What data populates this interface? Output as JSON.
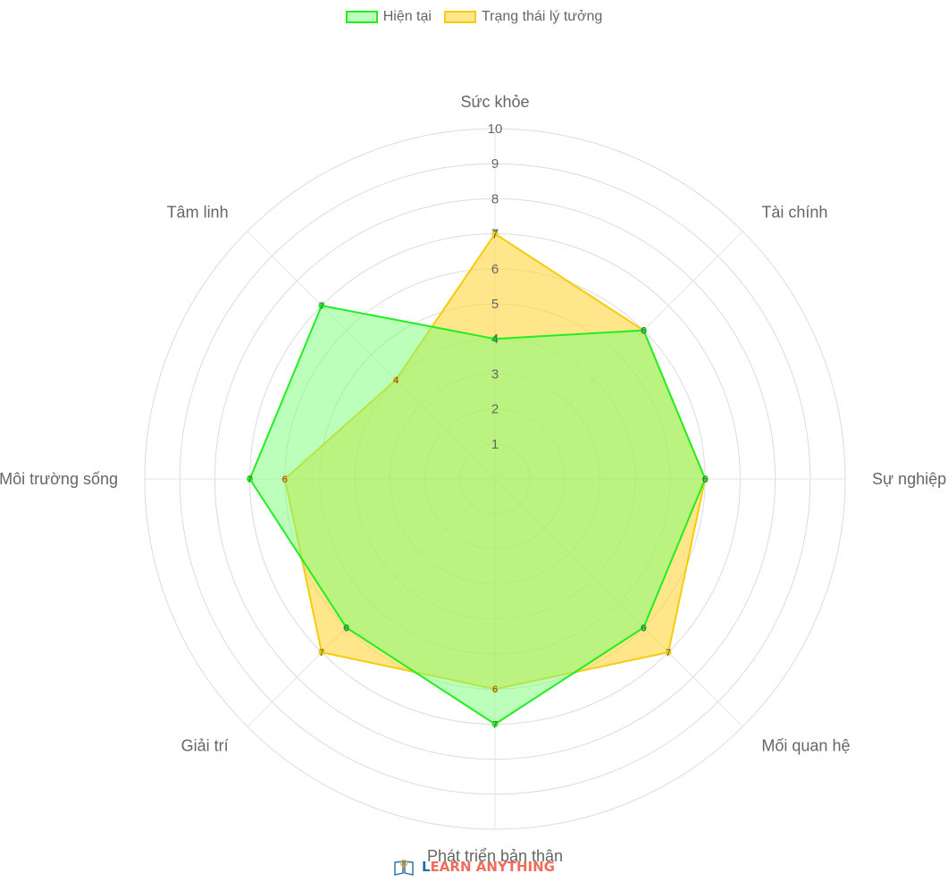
{
  "legend": {
    "series_0": "Hiện tại",
    "series_1": "Trạng thái lý tưởng"
  },
  "chart_data": {
    "type": "radar",
    "title": "",
    "categories": [
      "Sức khỏe",
      "Tài chính",
      "Sự nghiệp",
      "Mối quan hệ",
      "Phát triển bản thân",
      "Giải trí",
      "Môi trường sống",
      "Tâm linh"
    ],
    "r_ticks": [
      "1",
      "2",
      "3",
      "4",
      "5",
      "6",
      "7",
      "8",
      "9",
      "10"
    ],
    "r_range": [
      0,
      10
    ],
    "grid": true,
    "legend_position": "top",
    "series": [
      {
        "name": "Hiện tại",
        "values": [
          4,
          6,
          6,
          6,
          7,
          6,
          7,
          7
        ],
        "stroke": "#22ee22",
        "fill": "rgba(120,255,120,0.5)"
      },
      {
        "name": "Trạng thái lý tưởng",
        "values": [
          7,
          6,
          6,
          7,
          6,
          7,
          6,
          4
        ],
        "stroke": "#f5cc10",
        "fill": "rgba(255,214,60,0.6)"
      }
    ]
  },
  "footer": {
    "logo_lead": "L",
    "logo_rest": "EARN ANYTHING",
    "logo_icon": "open-book-lightbulb-icon"
  }
}
